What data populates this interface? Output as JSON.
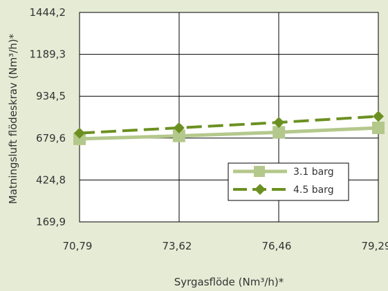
{
  "chart_data": {
    "type": "line",
    "xlabel": "Syrgasflöde (Nm³/h)*",
    "ylabel": "Matningsluft flödeskrav  (Nm³/h)*",
    "x_ticks": [
      "70,79",
      "73,62",
      "76,46",
      "79,29"
    ],
    "y_ticks": [
      "169,9",
      "424,8",
      "679,6",
      "934,5",
      "1189,3",
      "1444,2"
    ],
    "xlim": [
      70.79,
      79.29
    ],
    "ylim": [
      169.9,
      1444.2
    ],
    "grid": true,
    "legend_position": "lower-right",
    "x": [
      70.79,
      73.62,
      76.46,
      79.29
    ],
    "series": [
      {
        "name": "3.1 barg",
        "color": "#b4c88c",
        "marker": "square",
        "line_style": "solid",
        "values": [
          675,
          693,
          715,
          742
        ]
      },
      {
        "name": "4.5 barg",
        "color": "#6b9021",
        "marker": "diamond",
        "line_style": "dashed",
        "values": [
          710,
          742,
          775,
          812
        ]
      }
    ]
  }
}
